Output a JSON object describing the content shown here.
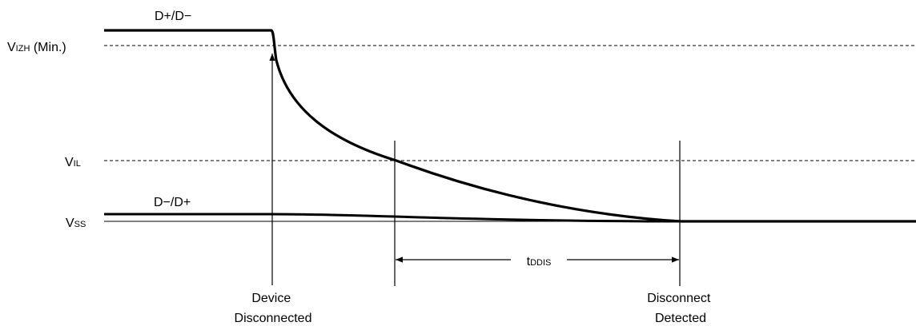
{
  "signals": {
    "upper": "D+/D−",
    "lower": "D−/D+"
  },
  "levels": {
    "vizh": {
      "main": "V",
      "sub": "IZH",
      "suffix": " (Min.)"
    },
    "vil": {
      "main": "V",
      "sub": "IL"
    },
    "vss": {
      "main": "V",
      "sub": "SS"
    }
  },
  "timing": {
    "interval": {
      "main": "t",
      "sub": "DDIS"
    }
  },
  "events": {
    "device_disconnected": [
      "Device",
      "Disconnected"
    ],
    "disconnect_detected": [
      "Disconnect",
      "Detected"
    ]
  },
  "colors": {
    "line": "#000000",
    "background": "#ffffff"
  }
}
